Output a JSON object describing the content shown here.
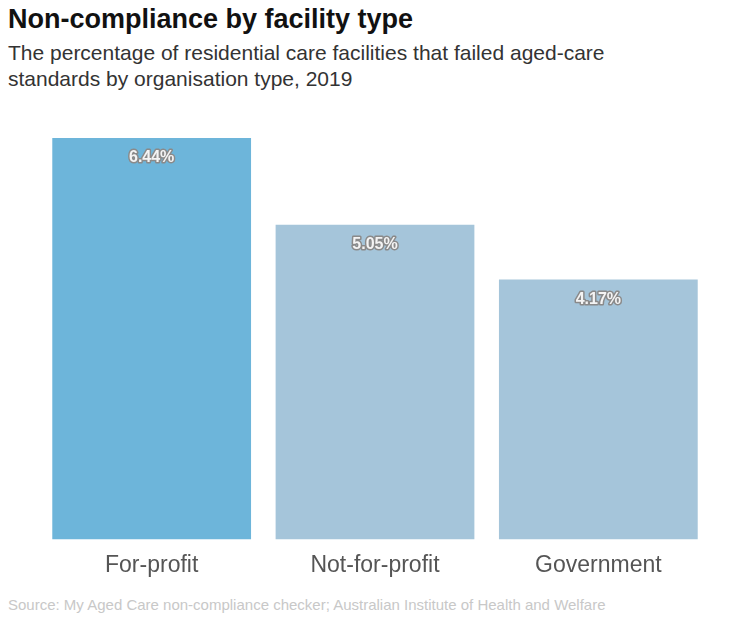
{
  "chart_data": {
    "type": "bar",
    "title": "Non-compliance by facility type",
    "subtitle": "The percentage of residential care facilities that failed aged-care standards by organisation type, 2019",
    "source": "Source: My Aged Care non-compliance checker; Australian Institute of Health and Welfare",
    "categories": [
      "For-profit",
      "Not-for-profit",
      "Government"
    ],
    "values": [
      6.44,
      5.05,
      4.17
    ],
    "value_labels": [
      "6.44%",
      "5.05%",
      "4.17%"
    ],
    "colors": [
      "#6db5da",
      "#a5c5da",
      "#a5c5da"
    ],
    "ylim": [
      0,
      6.44
    ],
    "grid": false,
    "data_labels": true,
    "tick_labels": "x"
  }
}
